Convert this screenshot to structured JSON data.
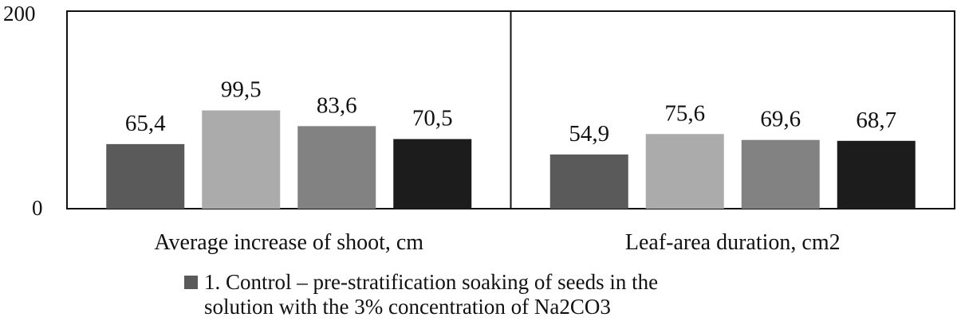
{
  "chart_data": {
    "type": "bar",
    "categories": [
      "Average increase of shoot, cm",
      "Leaf-area duration, cm2"
    ],
    "series": [
      {
        "name": "1. Control – pre-stratification soaking of seeds in the solution with the 3% concentration of Na2CO3",
        "values": [
          65.4,
          54.9
        ],
        "color": "#5a5a5a"
      },
      {
        "values": [
          99.5,
          75.6
        ],
        "color": "#ababab"
      },
      {
        "values": [
          83.6,
          69.6
        ],
        "color": "#828282"
      },
      {
        "values": [
          70.5,
          68.7
        ],
        "color": "#1c1c1c"
      }
    ],
    "data_labels": [
      [
        "65,4",
        "54,9"
      ],
      [
        "99,5",
        "75,6"
      ],
      [
        "83,6",
        "69,6"
      ],
      [
        "70,5",
        "68,7"
      ]
    ],
    "yticks": [
      "0",
      "200"
    ],
    "ylim": [
      0,
      200
    ],
    "legend": {
      "line1": "1. Control – pre-stratification soaking of seeds in the",
      "line2": "solution with the 3% concentration of Na2CO3",
      "position": "bottom"
    }
  }
}
